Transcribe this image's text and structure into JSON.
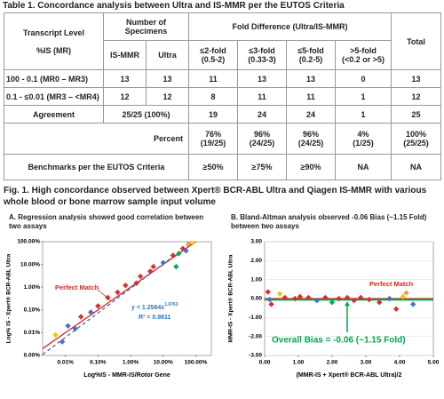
{
  "table": {
    "title": "Table 1. Concordance analysis between Ultra and IS-MMR per the EUTOS Criteria",
    "header": {
      "transcript_level": [
        "Transcript Level",
        "%IS (MR)"
      ],
      "specimens": "Number of Specimens",
      "specimen_columns": [
        "IS-MMR",
        "Ultra"
      ],
      "fold_difference": "Fold Difference (Ultra/IS-MMR)",
      "fold_columns": [
        [
          "≤2-fold",
          "(0.5-2)"
        ],
        [
          "≤3-fold",
          "(0.33-3)"
        ],
        [
          "≤5-fold",
          "(0.2-5)"
        ],
        [
          ">5-fold",
          "(<0.2 or >5)"
        ]
      ],
      "total": "Total"
    },
    "rows": [
      [
        "100  - 0.1 (MR0 – MR3)",
        13,
        13,
        11,
        13,
        13,
        0,
        13
      ],
      [
        "0.1 - ≤0.01 (MR3 – <MR4)",
        12,
        12,
        8,
        11,
        11,
        1,
        12
      ],
      [
        "Agreement",
        "25/25 (100%)",
        19,
        24,
        24,
        1,
        25
      ],
      [
        "Percent",
        [
          "76%",
          "(19/25)"
        ],
        [
          "96%",
          "(24/25)"
        ],
        [
          "96%",
          "(24/25)"
        ],
        [
          "4%",
          "(1/25)"
        ],
        [
          "100%",
          "(25/25)"
        ]
      ],
      [
        "Benchmarks per the EUTOS Criteria",
        "≥50%",
        "≥75%",
        "≥90%",
        "NA",
        "NA"
      ]
    ]
  },
  "figure_caption": "Fig. 1. High concordance observed between Xpert® BCR-ABL Ultra and Qiagen IS-MMR with various whole blood or bone marrow sample input volume",
  "chart_data": [
    {
      "type": "scatter",
      "title": "A. Regression analysis showed good correlation between two assays",
      "x_label": "Log%IS - MMR-IS/Rotor Gene",
      "y_label": "Log% IS - Xpert® BCR-ABL Ultra",
      "log_scale": true,
      "grid": false,
      "xlim": [
        0.002,
        300
      ],
      "ylim": [
        0.001,
        100
      ],
      "xticks": [
        {
          "value": 0.01,
          "label": "0.01%"
        },
        {
          "value": 0.1,
          "label": "0.10%"
        },
        {
          "value": 1,
          "label": "1.00%"
        },
        {
          "value": 10,
          "label": "10.00%"
        },
        {
          "value": 100,
          "label": "100.00%"
        }
      ],
      "yticks": [
        {
          "value": 0.001,
          "label": "0.00%"
        },
        {
          "value": 0.01,
          "label": "0.01%"
        },
        {
          "value": 0.1,
          "label": "0.10%"
        },
        {
          "value": 1,
          "label": "1.00%"
        },
        {
          "value": 10,
          "label": "10.00%"
        },
        {
          "value": 100,
          "label": "100.00%"
        }
      ],
      "x": [
        0.005,
        0.008,
        0.012,
        0.02,
        0.03,
        0.06,
        0.1,
        0.2,
        0.4,
        0.7,
        1.5,
        2,
        4,
        5,
        10,
        20,
        30,
        40,
        50,
        60,
        80,
        25
      ],
      "y": [
        0.008,
        0.004,
        0.02,
        0.015,
        0.05,
        0.08,
        0.15,
        0.35,
        0.6,
        1.2,
        1.5,
        3,
        5,
        8,
        12,
        25,
        30,
        50,
        40,
        80,
        90,
        8
      ],
      "colors": [
        "#ffc000",
        "#4472c4",
        "#4472c4",
        "#4472c4",
        "#d9302c",
        "#4472c4",
        "#d9302c",
        "#d9302c",
        "#d9302c",
        "#d9302c",
        "#d9302c",
        "#d9302c",
        "#d9302c",
        "#d9302c",
        "#4472c4",
        "#d9302c",
        "#00b050",
        "#d9302c",
        "#4472c4",
        "#f79646",
        "#ffc000",
        "#00b050"
      ],
      "reference_line": {
        "label": "Perfect Match",
        "color": "#e32119"
      },
      "trendline": {
        "coefficient": 1.2564,
        "exponent": 1.0763,
        "color": "#2e75b6",
        "equation": "y = 1.2564x",
        "equation_exponent": "1.0763",
        "r2": "R² = 0.9811"
      }
    },
    {
      "type": "scatter",
      "title": "B. Bland-Altman analysis observed -0.06 Bias (~1.15 Fold) between two assays",
      "x_label": "(MMR-IS + Xpert® BCR-ABL Ultra)/2",
      "y_label": "MMR-IS - Xpert® BCR-ABL Ultra",
      "log_scale": false,
      "grid": true,
      "xlim": [
        0,
        5
      ],
      "ylim": [
        -3,
        3
      ],
      "xticks": [
        {
          "value": 0,
          "label": "0.00"
        },
        {
          "value": 1,
          "label": "1.00"
        },
        {
          "value": 2,
          "label": "2.00"
        },
        {
          "value": 3,
          "label": "3.00"
        },
        {
          "value": 4,
          "label": "4.00"
        },
        {
          "value": 5,
          "label": "5.00"
        }
      ],
      "yticks": [
        {
          "value": -3,
          "label": "-3.00"
        },
        {
          "value": -2,
          "label": "-2.00"
        },
        {
          "value": -1,
          "label": "-1.00"
        },
        {
          "value": 0,
          "label": "0.00"
        },
        {
          "value": 1,
          "label": "1.00"
        },
        {
          "value": 2,
          "label": "2.00"
        },
        {
          "value": 3,
          "label": "3.00"
        }
      ],
      "x": [
        0.1,
        0.15,
        0.2,
        0.45,
        0.6,
        0.9,
        1.05,
        1.3,
        1.55,
        1.8,
        2.0,
        2.2,
        2.45,
        2.65,
        2.85,
        3.1,
        3.4,
        3.7,
        3.9,
        4.1,
        4.2,
        4.4
      ],
      "y": [
        0.35,
        -0.05,
        -0.3,
        0.25,
        0.05,
        0.0,
        0.1,
        0.05,
        -0.1,
        0.05,
        -0.2,
        0.0,
        0.05,
        -0.1,
        0.05,
        -0.05,
        -0.2,
        0.0,
        -0.55,
        0.1,
        0.3,
        -0.3
      ],
      "colors": [
        "#d9302c",
        "#4472c4",
        "#d9302c",
        "#ffc000",
        "#d9302c",
        "#d9302c",
        "#d9302c",
        "#d9302c",
        "#4472c4",
        "#d9302c",
        "#00b050",
        "#d9302c",
        "#d9302c",
        "#d9302c",
        "#d9302c",
        "#d9302c",
        "#d9302c",
        "#4472c4",
        "#d9302c",
        "#ffc000",
        "#f79646",
        "#4472c4"
      ],
      "reference_line": {
        "value": 0,
        "label": "Perfect Match",
        "color": "#e32119"
      },
      "bias_line": {
        "value": -0.06,
        "color": "#00a651",
        "label": "Overall Bias = -0.06 (~1.15 Fold)"
      }
    }
  ]
}
